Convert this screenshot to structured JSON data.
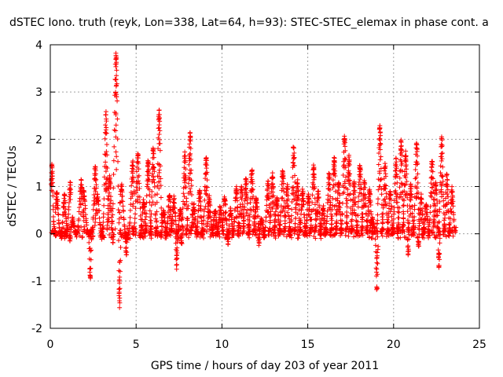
{
  "chart_data": {
    "type": "scatter",
    "title": "dSTEC Iono. truth (reyk, Lon=338, Lat=64, h=93): STEC-STEC_elemax in phase cont. a",
    "xlabel": "GPS time / hours of day 203 of year 2011",
    "ylabel": "dSTEC  / TECUs",
    "xlim": [
      0,
      25
    ],
    "ylim": [
      -2,
      4
    ],
    "x_ticks": [
      0,
      5,
      10,
      15,
      20,
      25
    ],
    "y_ticks": [
      -2,
      -1,
      0,
      1,
      2,
      3,
      4
    ],
    "x_tick_labels": [
      "0",
      "5",
      "10",
      "15",
      "20",
      "25"
    ],
    "y_tick_labels": [
      "-2",
      "-1",
      "0",
      "1",
      "2",
      "3",
      "4"
    ],
    "grid": true,
    "marker": "+",
    "color": "#ff0000",
    "arcs": [
      {
        "x0": 0.05,
        "x1": 0.35,
        "peak": 1.45,
        "peakPos": 0.15,
        "dip": 0.0
      },
      {
        "x0": 0.3,
        "x1": 0.7,
        "peak": 0.9,
        "peakPos": 0.2,
        "dip": 0.0
      },
      {
        "x0": 0.6,
        "x1": 1.0,
        "peak": 0.8,
        "peakPos": 0.55,
        "dip": -0.1
      },
      {
        "x0": 0.8,
        "x1": 1.2,
        "peak": 1.05,
        "peakPos": 0.9,
        "dip": 0.0
      },
      {
        "x0": 1.1,
        "x1": 1.5,
        "peak": 0.3,
        "peakPos": 0.5,
        "dip": -0.15
      },
      {
        "x0": 1.5,
        "x1": 2.0,
        "peak": 1.1,
        "peakPos": 0.6,
        "dip": 0.05
      },
      {
        "x0": 1.9,
        "x1": 2.4,
        "peak": 0.9,
        "peakPos": 0.1,
        "dip": -0.95
      },
      {
        "x0": 2.3,
        "x1": 2.7,
        "peak": 1.45,
        "peakPos": 0.8,
        "dip": 0.0
      },
      {
        "x0": 2.6,
        "x1": 3.1,
        "peak": 0.8,
        "peakPos": 0.3,
        "dip": -0.1
      },
      {
        "x0": 3.0,
        "x1": 3.4,
        "peak": 2.55,
        "peakPos": 0.6,
        "dip": 0.0
      },
      {
        "x0": 3.3,
        "x1": 3.7,
        "peak": 1.2,
        "peakPos": 0.4,
        "dip": -0.2
      },
      {
        "x0": 3.6,
        "x1": 4.1,
        "peak": 3.8,
        "peakPos": 0.45,
        "dip": -1.75
      },
      {
        "x0": 4.0,
        "x1": 4.5,
        "peak": 1.0,
        "peakPos": 0.3,
        "dip": -0.45
      },
      {
        "x0": 4.4,
        "x1": 4.9,
        "peak": 1.5,
        "peakPos": 0.8,
        "dip": -0.1
      },
      {
        "x0": 4.8,
        "x1": 5.3,
        "peak": 1.7,
        "peakPos": 0.6,
        "dip": 0.0
      },
      {
        "x0": 5.2,
        "x1": 5.6,
        "peak": 0.7,
        "peakPos": 0.6,
        "dip": -0.05
      },
      {
        "x0": 5.5,
        "x1": 5.9,
        "peak": 1.55,
        "peakPos": 0.5,
        "dip": -0.1
      },
      {
        "x0": 5.8,
        "x1": 6.2,
        "peak": 1.8,
        "peakPos": 0.5,
        "dip": -0.1
      },
      {
        "x0": 6.1,
        "x1": 6.5,
        "peak": 2.6,
        "peakPos": 0.6,
        "dip": 0.0
      },
      {
        "x0": 6.4,
        "x1": 6.8,
        "peak": 0.5,
        "peakPos": 0.5,
        "dip": -0.1
      },
      {
        "x0": 6.7,
        "x1": 7.1,
        "peak": 0.8,
        "peakPos": 0.6,
        "dip": -0.05
      },
      {
        "x0": 7.0,
        "x1": 7.4,
        "peak": 0.75,
        "peakPos": 0.5,
        "dip": 0.0
      },
      {
        "x0": 7.3,
        "x1": 7.7,
        "peak": 0.5,
        "peakPos": 0.7,
        "dip": -0.7
      },
      {
        "x0": 7.6,
        "x1": 8.0,
        "peak": 1.7,
        "peakPos": 0.6,
        "dip": -0.3
      },
      {
        "x0": 7.9,
        "x1": 8.3,
        "peak": 2.1,
        "peakPos": 0.6,
        "dip": 0.0
      },
      {
        "x0": 8.2,
        "x1": 8.6,
        "peak": 0.6,
        "peakPos": 0.4,
        "dip": 0.0
      },
      {
        "x0": 8.5,
        "x1": 8.9,
        "peak": 0.9,
        "peakPos": 0.5,
        "dip": -0.05
      },
      {
        "x0": 8.8,
        "x1": 9.2,
        "peak": 1.6,
        "peakPos": 0.7,
        "dip": 0.0
      },
      {
        "x0": 9.1,
        "x1": 9.5,
        "peak": 0.75,
        "peakPos": 0.4,
        "dip": 0.0
      },
      {
        "x0": 9.4,
        "x1": 9.8,
        "peak": 0.5,
        "peakPos": 0.5,
        "dip": 0.0
      },
      {
        "x0": 9.7,
        "x1": 10.1,
        "peak": 0.55,
        "peakPos": 0.5,
        "dip": -0.05
      },
      {
        "x0": 10.0,
        "x1": 10.4,
        "peak": 0.75,
        "peakPos": 0.4,
        "dip": -0.1
      },
      {
        "x0": 10.3,
        "x1": 10.7,
        "peak": 0.5,
        "peakPos": 0.5,
        "dip": -0.25
      },
      {
        "x0": 10.6,
        "x1": 11.0,
        "peak": 0.95,
        "peakPos": 0.6,
        "dip": 0.0
      },
      {
        "x0": 10.9,
        "x1": 11.3,
        "peak": 1.0,
        "peakPos": 0.6,
        "dip": 0.0
      },
      {
        "x0": 11.2,
        "x1": 11.6,
        "peak": 1.15,
        "peakPos": 0.5,
        "dip": 0.0
      },
      {
        "x0": 11.5,
        "x1": 11.9,
        "peak": 1.35,
        "peakPos": 0.6,
        "dip": 0.0
      },
      {
        "x0": 11.8,
        "x1": 12.2,
        "peak": 0.75,
        "peakPos": 0.5,
        "dip": 0.0
      },
      {
        "x0": 12.1,
        "x1": 12.5,
        "peak": 0.3,
        "peakPos": 0.5,
        "dip": -0.25
      },
      {
        "x0": 12.4,
        "x1": 12.8,
        "peak": 1.1,
        "peakPos": 0.7,
        "dip": -0.1
      },
      {
        "x0": 12.7,
        "x1": 13.1,
        "peak": 1.25,
        "peakPos": 0.6,
        "dip": 0.0
      },
      {
        "x0": 13.0,
        "x1": 13.4,
        "peak": 0.75,
        "peakPos": 0.5,
        "dip": 0.0
      },
      {
        "x0": 13.3,
        "x1": 13.7,
        "peak": 1.35,
        "peakPos": 0.6,
        "dip": 0.0
      },
      {
        "x0": 13.6,
        "x1": 14.0,
        "peak": 1.0,
        "peakPos": 0.5,
        "dip": 0.0
      },
      {
        "x0": 13.9,
        "x1": 14.3,
        "peak": 1.85,
        "peakPos": 0.7,
        "dip": 0.0
      },
      {
        "x0": 14.2,
        "x1": 14.6,
        "peak": 1.1,
        "peakPos": 0.5,
        "dip": 0.0
      },
      {
        "x0": 14.5,
        "x1": 14.9,
        "peak": 0.9,
        "peakPos": 0.5,
        "dip": 0.0
      },
      {
        "x0": 14.8,
        "x1": 15.2,
        "peak": 0.8,
        "peakPos": 0.6,
        "dip": 0.0
      },
      {
        "x0": 15.1,
        "x1": 15.5,
        "peak": 1.4,
        "peakPos": 0.6,
        "dip": 0.0
      },
      {
        "x0": 15.4,
        "x1": 15.8,
        "peak": 0.9,
        "peakPos": 0.5,
        "dip": 0.0
      },
      {
        "x0": 15.7,
        "x1": 16.1,
        "peak": 0.55,
        "peakPos": 0.5,
        "dip": 0.0
      },
      {
        "x0": 16.0,
        "x1": 16.4,
        "peak": 1.25,
        "peakPos": 0.6,
        "dip": 0.0
      },
      {
        "x0": 16.3,
        "x1": 16.7,
        "peak": 1.6,
        "peakPos": 0.6,
        "dip": 0.0
      },
      {
        "x0": 16.6,
        "x1": 17.0,
        "peak": 1.1,
        "peakPos": 0.5,
        "dip": 0.0
      },
      {
        "x0": 16.9,
        "x1": 17.3,
        "peak": 2.05,
        "peakPos": 0.6,
        "dip": 0.0
      },
      {
        "x0": 17.2,
        "x1": 17.6,
        "peak": 1.6,
        "peakPos": 0.5,
        "dip": 0.0
      },
      {
        "x0": 17.5,
        "x1": 17.9,
        "peak": 1.1,
        "peakPos": 0.5,
        "dip": 0.0
      },
      {
        "x0": 17.8,
        "x1": 18.2,
        "peak": 1.45,
        "peakPos": 0.6,
        "dip": 0.0
      },
      {
        "x0": 18.1,
        "x1": 18.5,
        "peak": 1.1,
        "peakPos": 0.5,
        "dip": 0.0
      },
      {
        "x0": 18.4,
        "x1": 18.8,
        "peak": 0.9,
        "peakPos": 0.5,
        "dip": 0.0
      },
      {
        "x0": 18.6,
        "x1": 19.1,
        "peak": 0.3,
        "peakPos": 0.3,
        "dip": -1.2
      },
      {
        "x0": 19.0,
        "x1": 19.4,
        "peak": 2.3,
        "peakPos": 0.5,
        "dip": 0.0
      },
      {
        "x0": 19.3,
        "x1": 19.7,
        "peak": 1.45,
        "peakPos": 0.5,
        "dip": 0.0
      },
      {
        "x0": 19.6,
        "x1": 20.0,
        "peak": 0.9,
        "peakPos": 0.5,
        "dip": 0.0
      },
      {
        "x0": 19.9,
        "x1": 20.3,
        "peak": 1.55,
        "peakPos": 0.6,
        "dip": 0.0
      },
      {
        "x0": 20.2,
        "x1": 20.6,
        "peak": 1.95,
        "peakPos": 0.6,
        "dip": 0.0
      },
      {
        "x0": 20.5,
        "x1": 20.9,
        "peak": 1.7,
        "peakPos": 0.5,
        "dip": 0.0
      },
      {
        "x0": 20.8,
        "x1": 21.2,
        "peak": 1.0,
        "peakPos": 0.5,
        "dip": -0.55
      },
      {
        "x0": 21.1,
        "x1": 21.5,
        "peak": 1.95,
        "peakPos": 0.6,
        "dip": 0.0
      },
      {
        "x0": 21.4,
        "x1": 21.8,
        "peak": 0.8,
        "peakPos": 0.5,
        "dip": -0.35
      },
      {
        "x0": 21.7,
        "x1": 22.1,
        "peak": 0.6,
        "peakPos": 0.5,
        "dip": 0.0
      },
      {
        "x0": 22.0,
        "x1": 22.4,
        "peak": 1.55,
        "peakPos": 0.6,
        "dip": 0.0
      },
      {
        "x0": 22.3,
        "x1": 22.7,
        "peak": 1.05,
        "peakPos": 0.4,
        "dip": -0.75
      },
      {
        "x0": 22.6,
        "x1": 23.0,
        "peak": 2.05,
        "peakPos": 0.5,
        "dip": 0.0
      },
      {
        "x0": 22.9,
        "x1": 23.3,
        "peak": 1.25,
        "peakPos": 0.5,
        "dip": 0.0
      },
      {
        "x0": 23.2,
        "x1": 23.6,
        "peak": 0.95,
        "peakPos": 0.5,
        "dip": -0.1
      }
    ]
  }
}
